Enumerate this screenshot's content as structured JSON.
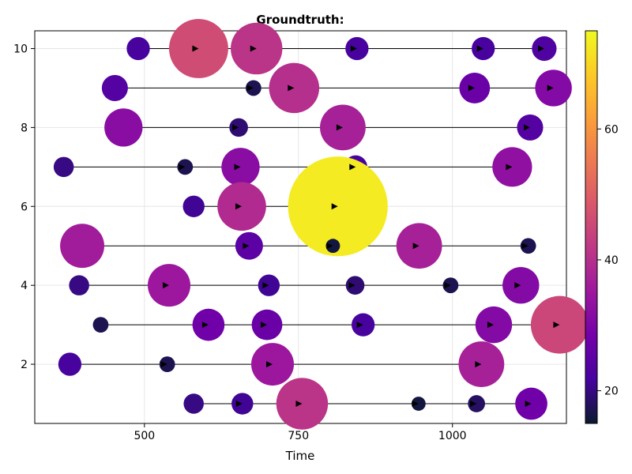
{
  "chart_data": {
    "type": "scatter",
    "title": "Groundtruth:",
    "xlabel": "Time",
    "ylabel": "",
    "xlim": [
      322,
      1185
    ],
    "ylim": [
      0.5,
      10.45
    ],
    "x_ticks": [
      500,
      750,
      1000
    ],
    "y_ticks": [
      2,
      4,
      6,
      8,
      10
    ],
    "grid": true,
    "colormap": "plasma",
    "colorbar": {
      "range": [
        15,
        75
      ],
      "ticks": [
        20,
        40,
        60
      ]
    },
    "colormap_stops": [
      "#0d0887",
      "#46039f",
      "#7201a8",
      "#9c179e",
      "#bd3786",
      "#d8576b",
      "#ed7953",
      "#fb9f3a",
      "#fdca26",
      "#f0f921"
    ],
    "dark_anchor": "#0a1a2e",
    "arrow_color": "#000000",
    "rows": [
      {
        "y": 10,
        "points": [
          {
            "x": 490,
            "v": 22
          },
          {
            "x": 588,
            "v": 46
          },
          {
            "x": 682,
            "v": 41
          },
          {
            "x": 845,
            "v": 22
          },
          {
            "x": 1050,
            "v": 22
          },
          {
            "x": 1149,
            "v": 23
          }
        ]
      },
      {
        "y": 9,
        "points": [
          {
            "x": 452,
            "v": 24
          },
          {
            "x": 677,
            "v": 17
          },
          {
            "x": 743,
            "v": 40
          },
          {
            "x": 1036,
            "v": 27
          },
          {
            "x": 1164,
            "v": 31
          }
        ]
      },
      {
        "y": 8,
        "points": [
          {
            "x": 466,
            "v": 32
          },
          {
            "x": 653,
            "v": 19
          },
          {
            "x": 822,
            "v": 37
          },
          {
            "x": 1126,
            "v": 24
          }
        ]
      },
      {
        "y": 7,
        "points": [
          {
            "x": 369,
            "v": 20
          },
          {
            "x": 566,
            "v": 17
          },
          {
            "x": 656,
            "v": 32
          },
          {
            "x": 843,
            "v": 22
          },
          {
            "x": 1097,
            "v": 33
          }
        ]
      },
      {
        "y": 6,
        "points": [
          {
            "x": 580,
            "v": 21
          },
          {
            "x": 658,
            "v": 39
          },
          {
            "x": 814,
            "v": 73
          }
        ]
      },
      {
        "y": 5,
        "points": [
          {
            "x": 399,
            "v": 36
          },
          {
            "x": 670,
            "v": 25
          },
          {
            "x": 806,
            "v": 16
          },
          {
            "x": 946,
            "v": 37
          },
          {
            "x": 1123,
            "v": 17
          }
        ]
      },
      {
        "y": 4,
        "points": [
          {
            "x": 394,
            "v": 20
          },
          {
            "x": 540,
            "v": 35
          },
          {
            "x": 702,
            "v": 21
          },
          {
            "x": 842,
            "v": 19
          },
          {
            "x": 997,
            "v": 17
          },
          {
            "x": 1111,
            "v": 31
          }
        ]
      },
      {
        "y": 3,
        "points": [
          {
            "x": 429,
            "v": 17
          },
          {
            "x": 604,
            "v": 28
          },
          {
            "x": 699,
            "v": 27
          },
          {
            "x": 855,
            "v": 22
          },
          {
            "x": 1067,
            "v": 31
          },
          {
            "x": 1174,
            "v": 45
          }
        ]
      },
      {
        "y": 2,
        "points": [
          {
            "x": 379,
            "v": 22
          },
          {
            "x": 537,
            "v": 17
          },
          {
            "x": 708,
            "v": 35
          },
          {
            "x": 1047,
            "v": 37
          }
        ]
      },
      {
        "y": 1,
        "points": [
          {
            "x": 580,
            "v": 20
          },
          {
            "x": 659,
            "v": 21
          },
          {
            "x": 756,
            "v": 41
          },
          {
            "x": 945,
            "v": 16
          },
          {
            "x": 1039,
            "v": 18
          },
          {
            "x": 1128,
            "v": 28
          }
        ]
      }
    ]
  }
}
